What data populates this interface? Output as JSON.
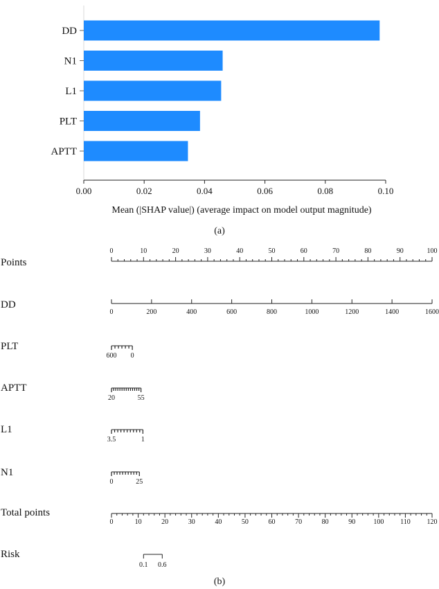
{
  "chart_data": [
    {
      "type": "bar",
      "orientation": "horizontal",
      "categories": [
        "DD",
        "N1",
        "L1",
        "PLT",
        "APTT"
      ],
      "values": [
        0.098,
        0.046,
        0.0455,
        0.0385,
        0.0345
      ],
      "xlabel": "Mean (|SHAP value|) (average impact on model output magnitude)",
      "xlim": [
        0,
        0.1
      ],
      "xticks": [
        "0.00",
        "0.02",
        "0.04",
        "0.06",
        "0.08",
        "0.10"
      ],
      "bar_color": "#1E8BFF",
      "grid": false,
      "caption": "(a)"
    },
    {
      "type": "nomogram",
      "caption": "(b)",
      "scales": [
        {
          "name": "Points",
          "start": 0,
          "end": 100,
          "major_step": 10,
          "minor_step": 2,
          "labels": [
            "0",
            "10",
            "20",
            "30",
            "40",
            "50",
            "60",
            "70",
            "80",
            "90",
            "100"
          ],
          "points_range": [
            0,
            100
          ]
        },
        {
          "name": "DD",
          "start": 0,
          "end": 1600,
          "major_step": 200,
          "minor_step": 200,
          "labels": [
            "0",
            "200",
            "400",
            "600",
            "800",
            "1000",
            "1200",
            "1400",
            "1600"
          ],
          "points_range": [
            0,
            100
          ]
        },
        {
          "name": "PLT",
          "labels": [
            "600",
            "0"
          ],
          "points_range": [
            0,
            6.5
          ],
          "minor_count": 6
        },
        {
          "name": "APTT",
          "labels": [
            "20",
            "55"
          ],
          "points_range": [
            0,
            9.2
          ],
          "minor_count": 14
        },
        {
          "name": "L1",
          "labels": [
            "3.5",
            "1"
          ],
          "points_range": [
            0,
            9.8
          ],
          "minor_count": 10
        },
        {
          "name": "N1",
          "labels": [
            "0",
            "25"
          ],
          "points_range": [
            0,
            8.7
          ],
          "minor_count": 10
        },
        {
          "name": "Total points",
          "start": 0,
          "end": 120,
          "major_step": 10,
          "minor_step": 2,
          "labels": [
            "0",
            "10",
            "20",
            "30",
            "40",
            "50",
            "60",
            "70",
            "80",
            "90",
            "100",
            "110",
            "120"
          ],
          "points_range": [
            0,
            100
          ]
        },
        {
          "name": "Risk",
          "labels": [
            "0.1",
            "0.6"
          ],
          "total_points_range": [
            12,
            19
          ]
        }
      ]
    }
  ]
}
